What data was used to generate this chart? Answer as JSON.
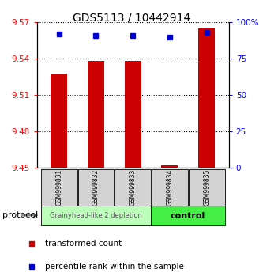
{
  "title": "GDS5113 / 10442914",
  "samples": [
    "GSM999831",
    "GSM999832",
    "GSM999833",
    "GSM999834",
    "GSM999835"
  ],
  "red_values": [
    9.528,
    9.538,
    9.538,
    9.452,
    9.565
  ],
  "blue_values": [
    92,
    91,
    91,
    90,
    93
  ],
  "ylim_left": [
    9.45,
    9.57
  ],
  "ylim_right": [
    0,
    100
  ],
  "yticks_left": [
    9.45,
    9.48,
    9.51,
    9.54,
    9.57
  ],
  "yticks_right": [
    0,
    25,
    50,
    75,
    100
  ],
  "ytick_labels_right": [
    "0",
    "25",
    "50",
    "75",
    "100%"
  ],
  "bar_color": "#cc0000",
  "dot_color": "#0000cc",
  "group1_label": "Grainyhead-like 2 depletion",
  "group2_label": "control",
  "group1_color": "#bbffbb",
  "group2_color": "#44ee44",
  "group1_n": 3,
  "group2_n": 2,
  "protocol_label": "protocol",
  "legend_red": "transformed count",
  "legend_blue": "percentile rank within the sample",
  "background_color": "#ffffff",
  "title_fontsize": 10,
  "tick_fontsize": 7.5,
  "bar_width": 0.45
}
